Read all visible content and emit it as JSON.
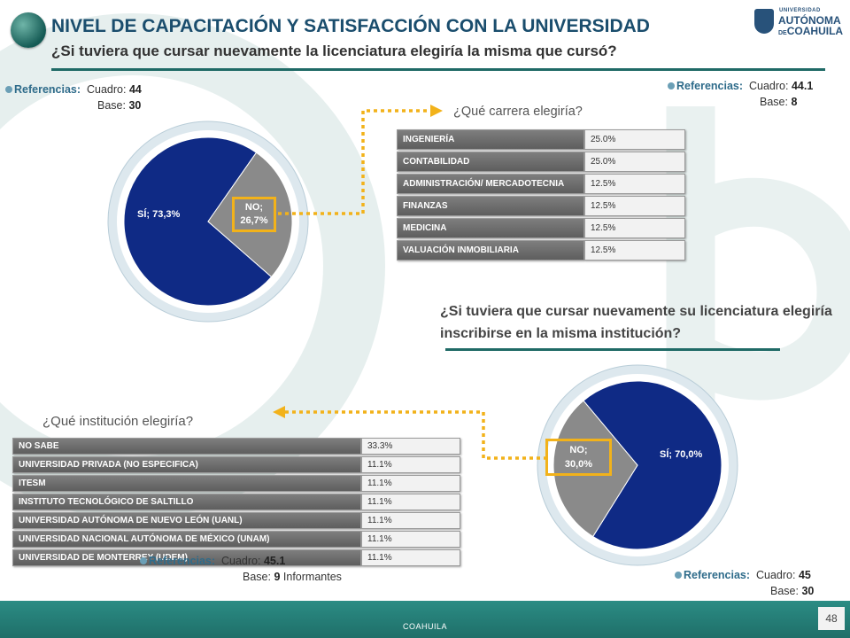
{
  "header": {
    "title": "NIVEL DE CAPACITACIÓN Y SATISFACCIÓN CON LA UNIVERSIDAD",
    "subtitle": "¿Si tuviera que cursar nuevamente la licenciatura elegiría la misma que cursó?",
    "logo": {
      "line1": "UNIVERSIDAD",
      "line2": "AUTÓNOMA",
      "line3_prefix": "DE",
      "line3": "COAHUILA"
    }
  },
  "ref_44": {
    "label": "Referencias:",
    "cuadro_label": "Cuadro:",
    "cuadro": "44",
    "base_label": "Base:",
    "base": "30"
  },
  "ref_44_1": {
    "label": "Referencias:",
    "cuadro_label": "Cuadro:",
    "cuadro": "44.1",
    "base_label": "Base:",
    "base": "8"
  },
  "ref_45_1": {
    "label": "Referencias:",
    "cuadro_label": "Cuadro:",
    "cuadro": "45.1",
    "base_label": "Base:",
    "base": "9",
    "base_suffix": "Informantes"
  },
  "ref_45": {
    "label": "Referencias:",
    "cuadro_label": "Cuadro:",
    "cuadro": "45",
    "base_label": "Base:",
    "base": "30"
  },
  "q_carrera": "¿Qué carrera elegiría?",
  "q_institucion_title": "¿Si tuviera que cursar nuevamente su licenciatura elegiría inscribirse en la misma institución?",
  "q_institucion_which": "¿Qué institución elegiría?",
  "colors": {
    "si": "#0f2a85",
    "no": "#8a8a8a",
    "highlight": "#f2b21a",
    "teal": "#1f6a66"
  },
  "footer": {
    "text": "COAHUILA",
    "page": "48"
  },
  "chart_data": [
    {
      "type": "pie",
      "slices": [
        {
          "label": "SÍ; 73,3%",
          "value": 73.3
        },
        {
          "label": "NO; 26,7%",
          "value": 26.7
        }
      ]
    },
    {
      "type": "table",
      "rows": [
        {
          "label": "INGENIERÍA",
          "value": "25.0%"
        },
        {
          "label": "CONTABILIDAD",
          "value": "25.0%"
        },
        {
          "label": "ADMINISTRACIÓN/ MERCADOTECNIA",
          "value": "12.5%"
        },
        {
          "label": "FINANZAS",
          "value": "12.5%"
        },
        {
          "label": "MEDICINA",
          "value": "12.5%"
        },
        {
          "label": "VALUACIÓN INMOBILIARIA",
          "value": "12.5%"
        }
      ]
    },
    {
      "type": "pie",
      "slices": [
        {
          "label": "SÍ; 70,0%",
          "value": 70.0
        },
        {
          "label": "NO; 30,0%",
          "value": 30.0
        }
      ]
    },
    {
      "type": "table",
      "rows": [
        {
          "label": "NO SABE",
          "value": "33.3%"
        },
        {
          "label": "UNIVERSIDAD PRIVADA (NO ESPECIFICA)",
          "value": "11.1%"
        },
        {
          "label": "ITESM",
          "value": "11.1%"
        },
        {
          "label": "INSTITUTO TECNOLÓGICO DE SALTILLO",
          "value": "11.1%"
        },
        {
          "label": "UNIVERSIDAD AUTÓNOMA DE NUEVO LEÓN (UANL)",
          "value": "11.1%"
        },
        {
          "label": "UNIVERSIDAD NACIONAL AUTÓNOMA DE MÉXICO (UNAM)",
          "value": "11.1%"
        },
        {
          "label": "UNIVERSIDAD DE MONTERREY (UDEM)",
          "value": "11.1%"
        }
      ]
    }
  ]
}
